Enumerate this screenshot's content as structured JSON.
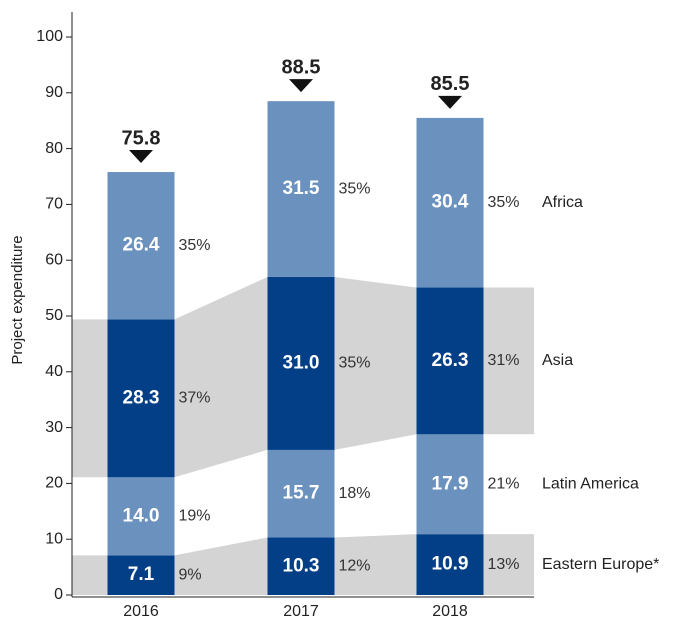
{
  "chart_data": {
    "type": "stacked_bar",
    "y_label": "Project expenditure",
    "categories": [
      "2016",
      "2017",
      "2018"
    ],
    "series": [
      {
        "name": "Eastern Europe*",
        "color": "#033f87",
        "band": true,
        "values": [
          7.1,
          10.3,
          10.9
        ],
        "value_labels": [
          "7.1",
          "10.3",
          "10.9"
        ],
        "share_labels": [
          "9%",
          "12%",
          "13%"
        ]
      },
      {
        "name": "Latin America",
        "color": "#6b92be",
        "band": false,
        "values": [
          14,
          15.7,
          17.9
        ],
        "value_labels": [
          "14.0",
          "15.7",
          "17.9"
        ],
        "share_labels": [
          "19%",
          "18%",
          "21%"
        ]
      },
      {
        "name": "Asia",
        "color": "#033f87",
        "band": true,
        "values": [
          28.3,
          31,
          26.3
        ],
        "value_labels": [
          "28.3",
          "31.0",
          "26.3"
        ],
        "share_labels": [
          "37%",
          "35%",
          "31%"
        ]
      },
      {
        "name": "Africa",
        "color": "#6b92be",
        "band": false,
        "values": [
          26.4,
          31.5,
          30.4
        ],
        "value_labels": [
          "26.4",
          "31.5",
          "30.4"
        ],
        "share_labels": [
          "35%",
          "35%",
          "35%"
        ]
      }
    ],
    "totals": [
      75.8,
      88.5,
      85.5
    ],
    "band_color": "#d4d4d4",
    "ylim": [
      0,
      100
    ],
    "yticks": [
      0,
      10,
      20,
      30,
      40,
      50,
      60,
      70,
      80,
      90,
      100
    ]
  }
}
